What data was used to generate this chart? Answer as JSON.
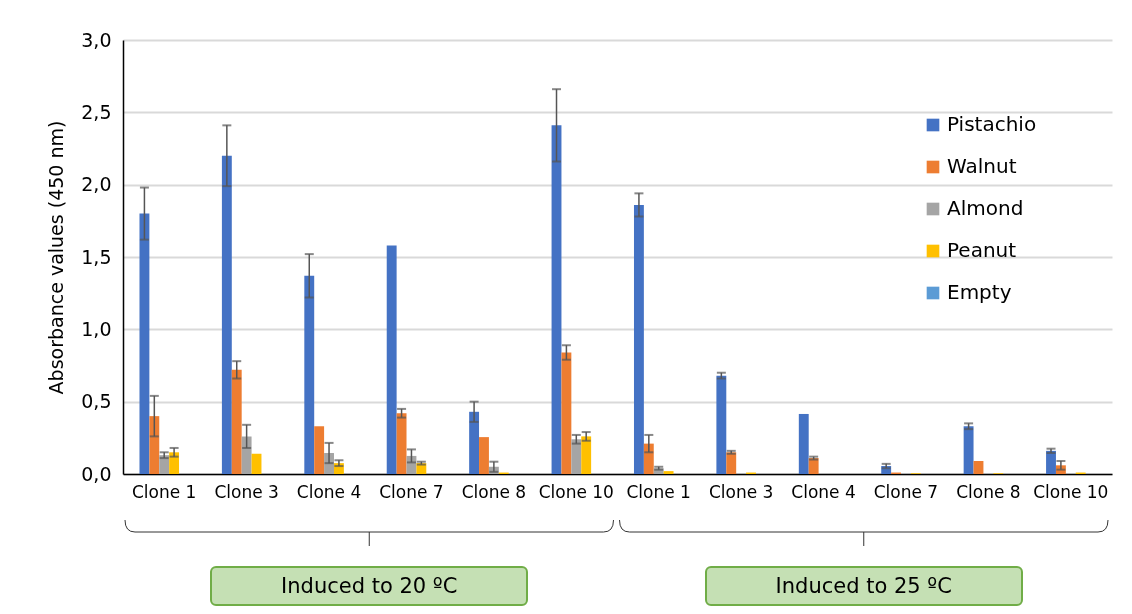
{
  "chart_data": {
    "type": "bar",
    "ylabel": "Absorbance values (450 nm)",
    "categories": [
      "Clone 1",
      "Clone 3",
      "Clone 4",
      "Clone 7",
      "Clone 8",
      "Clone 10",
      "Clone 1",
      "Clone 3",
      "Clone 4",
      "Clone 7",
      "Clone 8",
      "Clone 10"
    ],
    "series": [
      {
        "name": "Pistachio",
        "color": "#4472c4",
        "values": [
          1.8,
          2.2,
          1.37,
          1.58,
          0.43,
          2.41,
          1.86,
          0.68,
          0.415,
          0.055,
          0.33,
          0.16
        ],
        "errors": [
          0.18,
          0.21,
          0.15,
          null,
          0.07,
          0.25,
          0.08,
          0.02,
          null,
          0.015,
          0.02,
          0.015
        ]
      },
      {
        "name": "Walnut",
        "color": "#ed7d31",
        "values": [
          0.4,
          0.72,
          0.33,
          0.42,
          0.255,
          0.84,
          0.21,
          0.15,
          0.11,
          0.01,
          0.09,
          0.06
        ],
        "errors": [
          0.14,
          0.06,
          null,
          0.03,
          null,
          0.05,
          0.06,
          0.01,
          0.01,
          null,
          null,
          0.03
        ]
      },
      {
        "name": "Almond",
        "color": "#a5a5a5",
        "values": [
          0.13,
          0.26,
          0.145,
          0.125,
          0.05,
          0.24,
          0.04,
          null,
          0,
          null,
          0,
          0
        ],
        "errors": [
          0.02,
          0.08,
          0.07,
          0.045,
          0.035,
          0.03,
          0.01,
          null,
          null,
          null,
          null,
          null
        ]
      },
      {
        "name": "Peanut",
        "color": "#ffc000",
        "values": [
          0.15,
          0.14,
          0.075,
          0.075,
          0.01,
          0.26,
          0.02,
          0.01,
          0,
          0.005,
          0.005,
          0.01
        ],
        "errors": [
          0.03,
          null,
          0.02,
          0.01,
          null,
          0.03,
          null,
          null,
          null,
          null,
          null,
          null
        ]
      },
      {
        "name": "Empty",
        "color": "#5b9bd5",
        "values": [
          0,
          0,
          0,
          0,
          0,
          0,
          0,
          0,
          0,
          0,
          0,
          0
        ]
      }
    ],
    "ylim": [
      0,
      3
    ],
    "yticks": [
      {
        "value": 0,
        "label": "0,0"
      },
      {
        "value": 0.5,
        "label": "0,5"
      },
      {
        "value": 1,
        "label": "1,0"
      },
      {
        "value": 1.5,
        "label": "1,5"
      },
      {
        "value": 2,
        "label": "2,0"
      },
      {
        "value": 2.5,
        "label": "2,5"
      },
      {
        "value": 3,
        "label": "3,0"
      }
    ],
    "grid": "y",
    "legend": "top right",
    "annotations": [
      "Induced to 20 ºC",
      "Induced to 25 ºC"
    ]
  }
}
